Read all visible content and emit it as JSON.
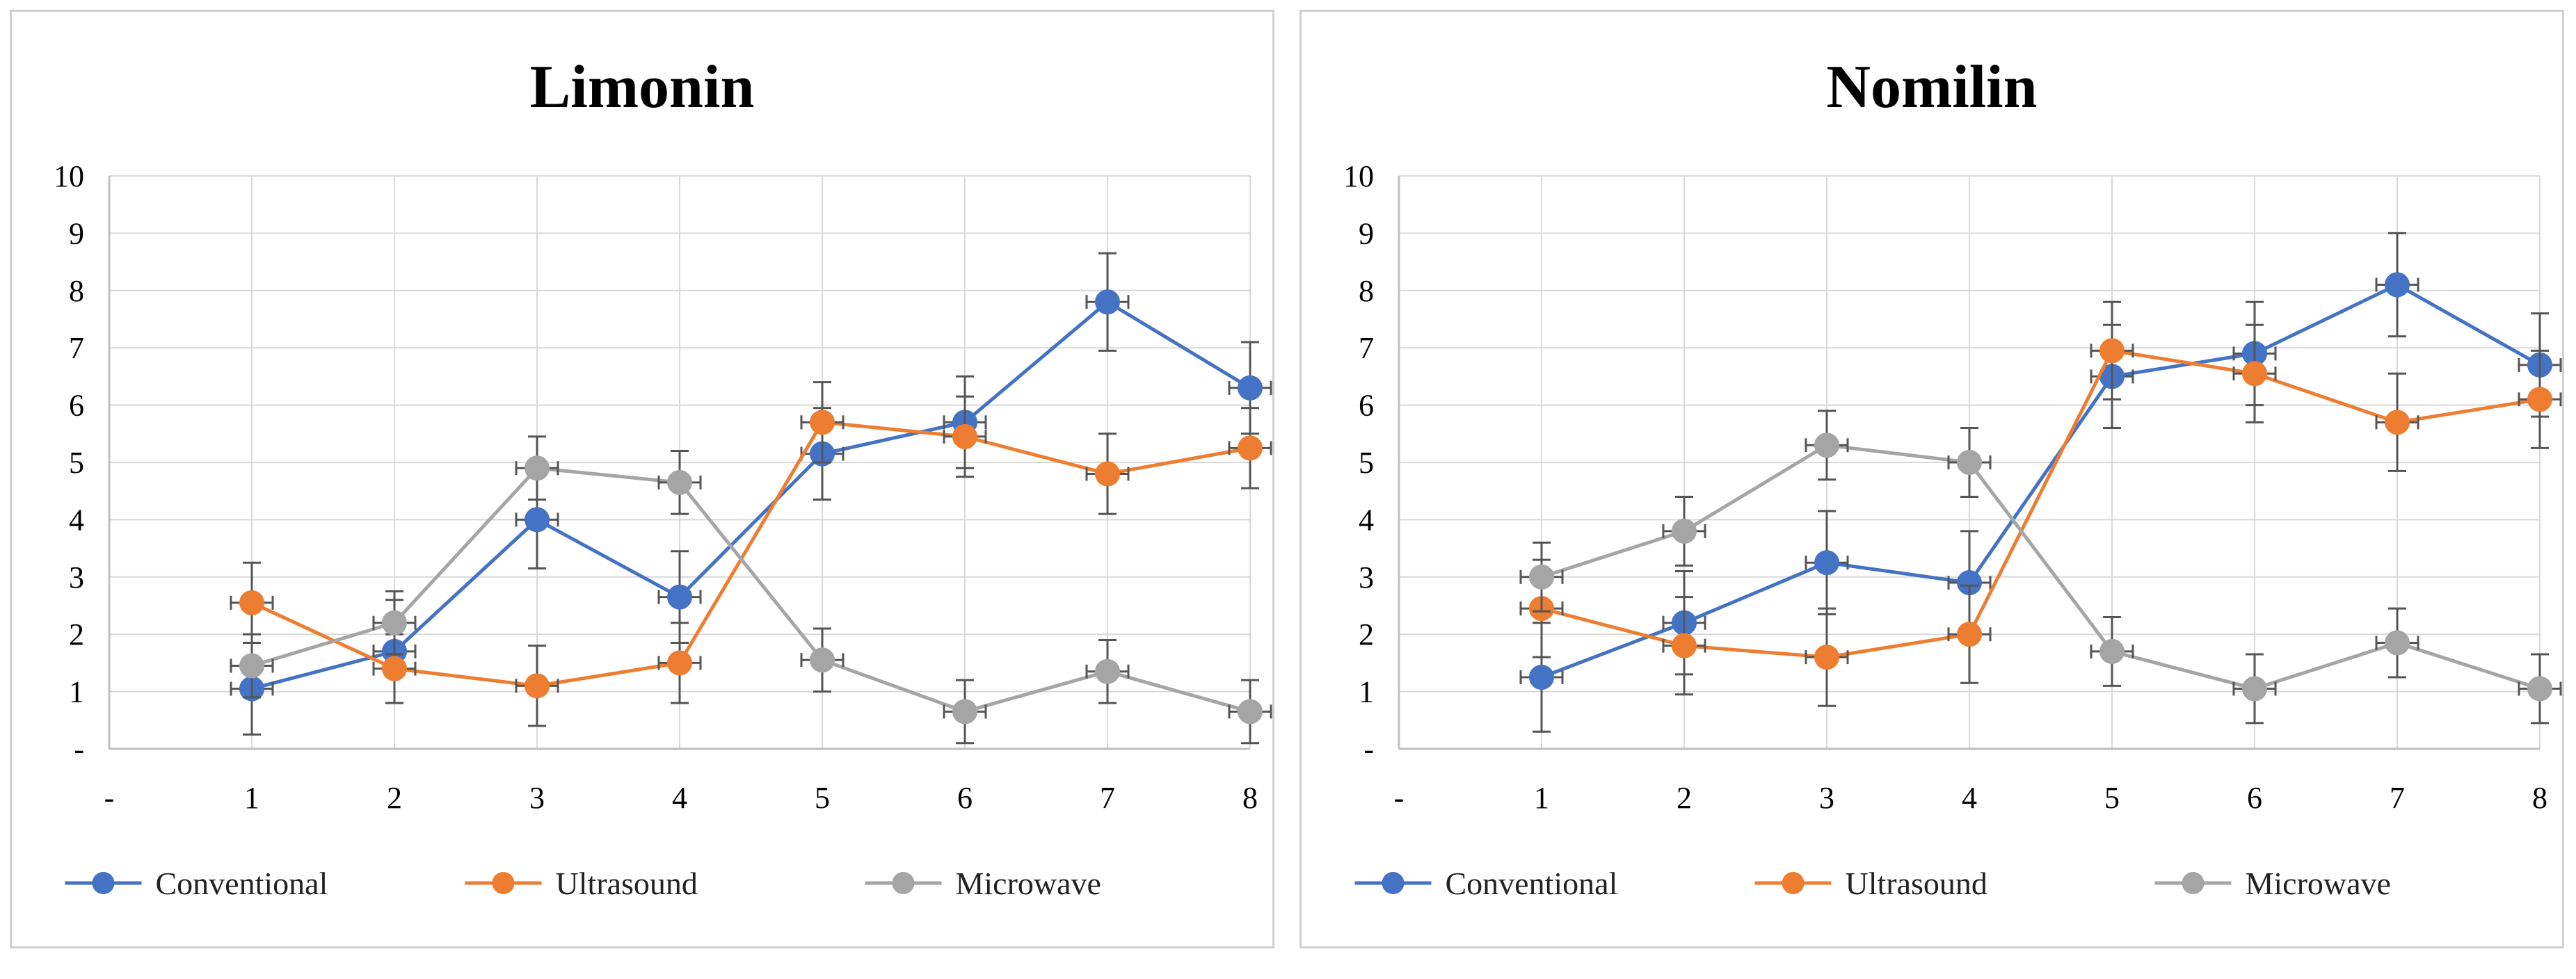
{
  "chart_data": [
    {
      "type": "line",
      "title": "Limonin",
      "x_tick_labels": [
        "-",
        "1",
        "2",
        "3",
        "4",
        "5",
        "6",
        "7",
        "8"
      ],
      "y_tick_labels": [
        "-",
        "1",
        "2",
        "3",
        "4",
        "5",
        "6",
        "7",
        "8",
        "9",
        "10"
      ],
      "x": [
        1,
        2,
        3,
        4,
        5,
        6,
        7,
        8
      ],
      "xlim": [
        0,
        8
      ],
      "ylim": [
        0,
        10
      ],
      "grid": true,
      "legend_position": "bottom",
      "series": [
        {
          "name": "Conventional",
          "color": "#4472C4",
          "values": [
            1.05,
            1.7,
            4.0,
            2.65,
            5.15,
            5.7,
            7.8,
            6.3
          ],
          "errors": [
            0.8,
            0.9,
            0.85,
            0.8,
            0.8,
            0.8,
            0.85,
            0.8
          ]
        },
        {
          "name": "Ultrasound",
          "color": "#ED7D31",
          "values": [
            2.55,
            1.4,
            1.1,
            1.5,
            5.7,
            5.45,
            4.8,
            5.25
          ],
          "errors": [
            0.7,
            0.6,
            0.7,
            0.7,
            0.7,
            0.7,
            0.7,
            0.7
          ]
        },
        {
          "name": "Microwave",
          "color": "#A5A5A5",
          "values": [
            1.45,
            2.2,
            4.9,
            4.65,
            1.55,
            0.65,
            1.35,
            0.65
          ],
          "errors": [
            0.55,
            0.55,
            0.55,
            0.55,
            0.55,
            0.55,
            0.55,
            0.55
          ]
        }
      ]
    },
    {
      "type": "line",
      "title": "Nomilin",
      "x_tick_labels": [
        "-",
        "1",
        "2",
        "3",
        "4",
        "5",
        "6",
        "7",
        "8"
      ],
      "y_tick_labels": [
        "-",
        "1",
        "2",
        "3",
        "4",
        "5",
        "6",
        "7",
        "8",
        "9",
        "10"
      ],
      "x": [
        1,
        2,
        3,
        4,
        5,
        6,
        7,
        8
      ],
      "xlim": [
        0,
        8
      ],
      "ylim": [
        0,
        10
      ],
      "grid": true,
      "legend_position": "bottom",
      "series": [
        {
          "name": "Conventional",
          "color": "#4472C4",
          "values": [
            1.25,
            2.2,
            3.25,
            2.9,
            6.5,
            6.9,
            8.1,
            6.7
          ],
          "errors": [
            0.95,
            0.9,
            0.9,
            0.9,
            0.9,
            0.9,
            0.9,
            0.9
          ]
        },
        {
          "name": "Ultrasound",
          "color": "#ED7D31",
          "values": [
            2.45,
            1.8,
            1.6,
            2.0,
            6.95,
            6.55,
            5.7,
            6.1
          ],
          "errors": [
            0.85,
            0.85,
            0.85,
            0.85,
            0.85,
            0.85,
            0.85,
            0.85
          ]
        },
        {
          "name": "Microwave",
          "color": "#A5A5A5",
          "values": [
            3.0,
            3.8,
            5.3,
            5.0,
            1.7,
            1.05,
            1.85,
            1.05
          ],
          "errors": [
            0.6,
            0.6,
            0.6,
            0.6,
            0.6,
            0.6,
            0.6,
            0.6
          ]
        }
      ]
    }
  ]
}
